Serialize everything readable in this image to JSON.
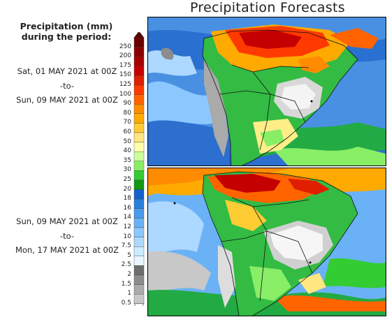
{
  "header": {
    "title": "Precipitation Forecasts"
  },
  "legend": {
    "heading_line1": "Precipitation (mm)",
    "heading_line2": "during the period:",
    "levels": [
      {
        "label": "250",
        "color": "#6b0000"
      },
      {
        "label": "200",
        "color": "#8b0000"
      },
      {
        "label": "175",
        "color": "#a80000"
      },
      {
        "label": "150",
        "color": "#c40000"
      },
      {
        "label": "125",
        "color": "#df1f00"
      },
      {
        "label": "100",
        "color": "#ff3a00"
      },
      {
        "label": "90",
        "color": "#ff6400"
      },
      {
        "label": "80",
        "color": "#ff8c00"
      },
      {
        "label": "70",
        "color": "#ffaa00"
      },
      {
        "label": "60",
        "color": "#ffcc33"
      },
      {
        "label": "50",
        "color": "#ffe680"
      },
      {
        "label": "40",
        "color": "#ffffaa"
      },
      {
        "label": "35",
        "color": "#ccff99"
      },
      {
        "label": "30",
        "color": "#88ee66"
      },
      {
        "label": "25",
        "color": "#33cc33"
      },
      {
        "label": "20",
        "color": "#119911"
      },
      {
        "label": "18",
        "color": "#1560cc"
      },
      {
        "label": "16",
        "color": "#2a80dd"
      },
      {
        "label": "14",
        "color": "#4a9aee"
      },
      {
        "label": "12",
        "color": "#6ab2f5"
      },
      {
        "label": "10",
        "color": "#8cc8ff"
      },
      {
        "label": "7.5",
        "color": "#add8ff"
      },
      {
        "label": "5",
        "color": "#ccecff"
      },
      {
        "label": "2.5",
        "color": "#e8f6ff"
      },
      {
        "label": "2",
        "color": "#6e6e6e"
      },
      {
        "label": "1.5",
        "color": "#8c8c8c"
      },
      {
        "label": "1",
        "color": "#aaaaaa"
      },
      {
        "label": "0.5",
        "color": "#c8c8c8"
      }
    ]
  },
  "period1": {
    "start": "Sat, 01 MAY 2021 at 00Z",
    "separator": "-to-",
    "end": "Sun, 09 MAY 2021 at 00Z"
  },
  "period2": {
    "start": "Sun, 09 MAY 2021 at 00Z",
    "separator": "-to-",
    "end": "Mon, 17 MAY 2021 at 00Z"
  }
}
